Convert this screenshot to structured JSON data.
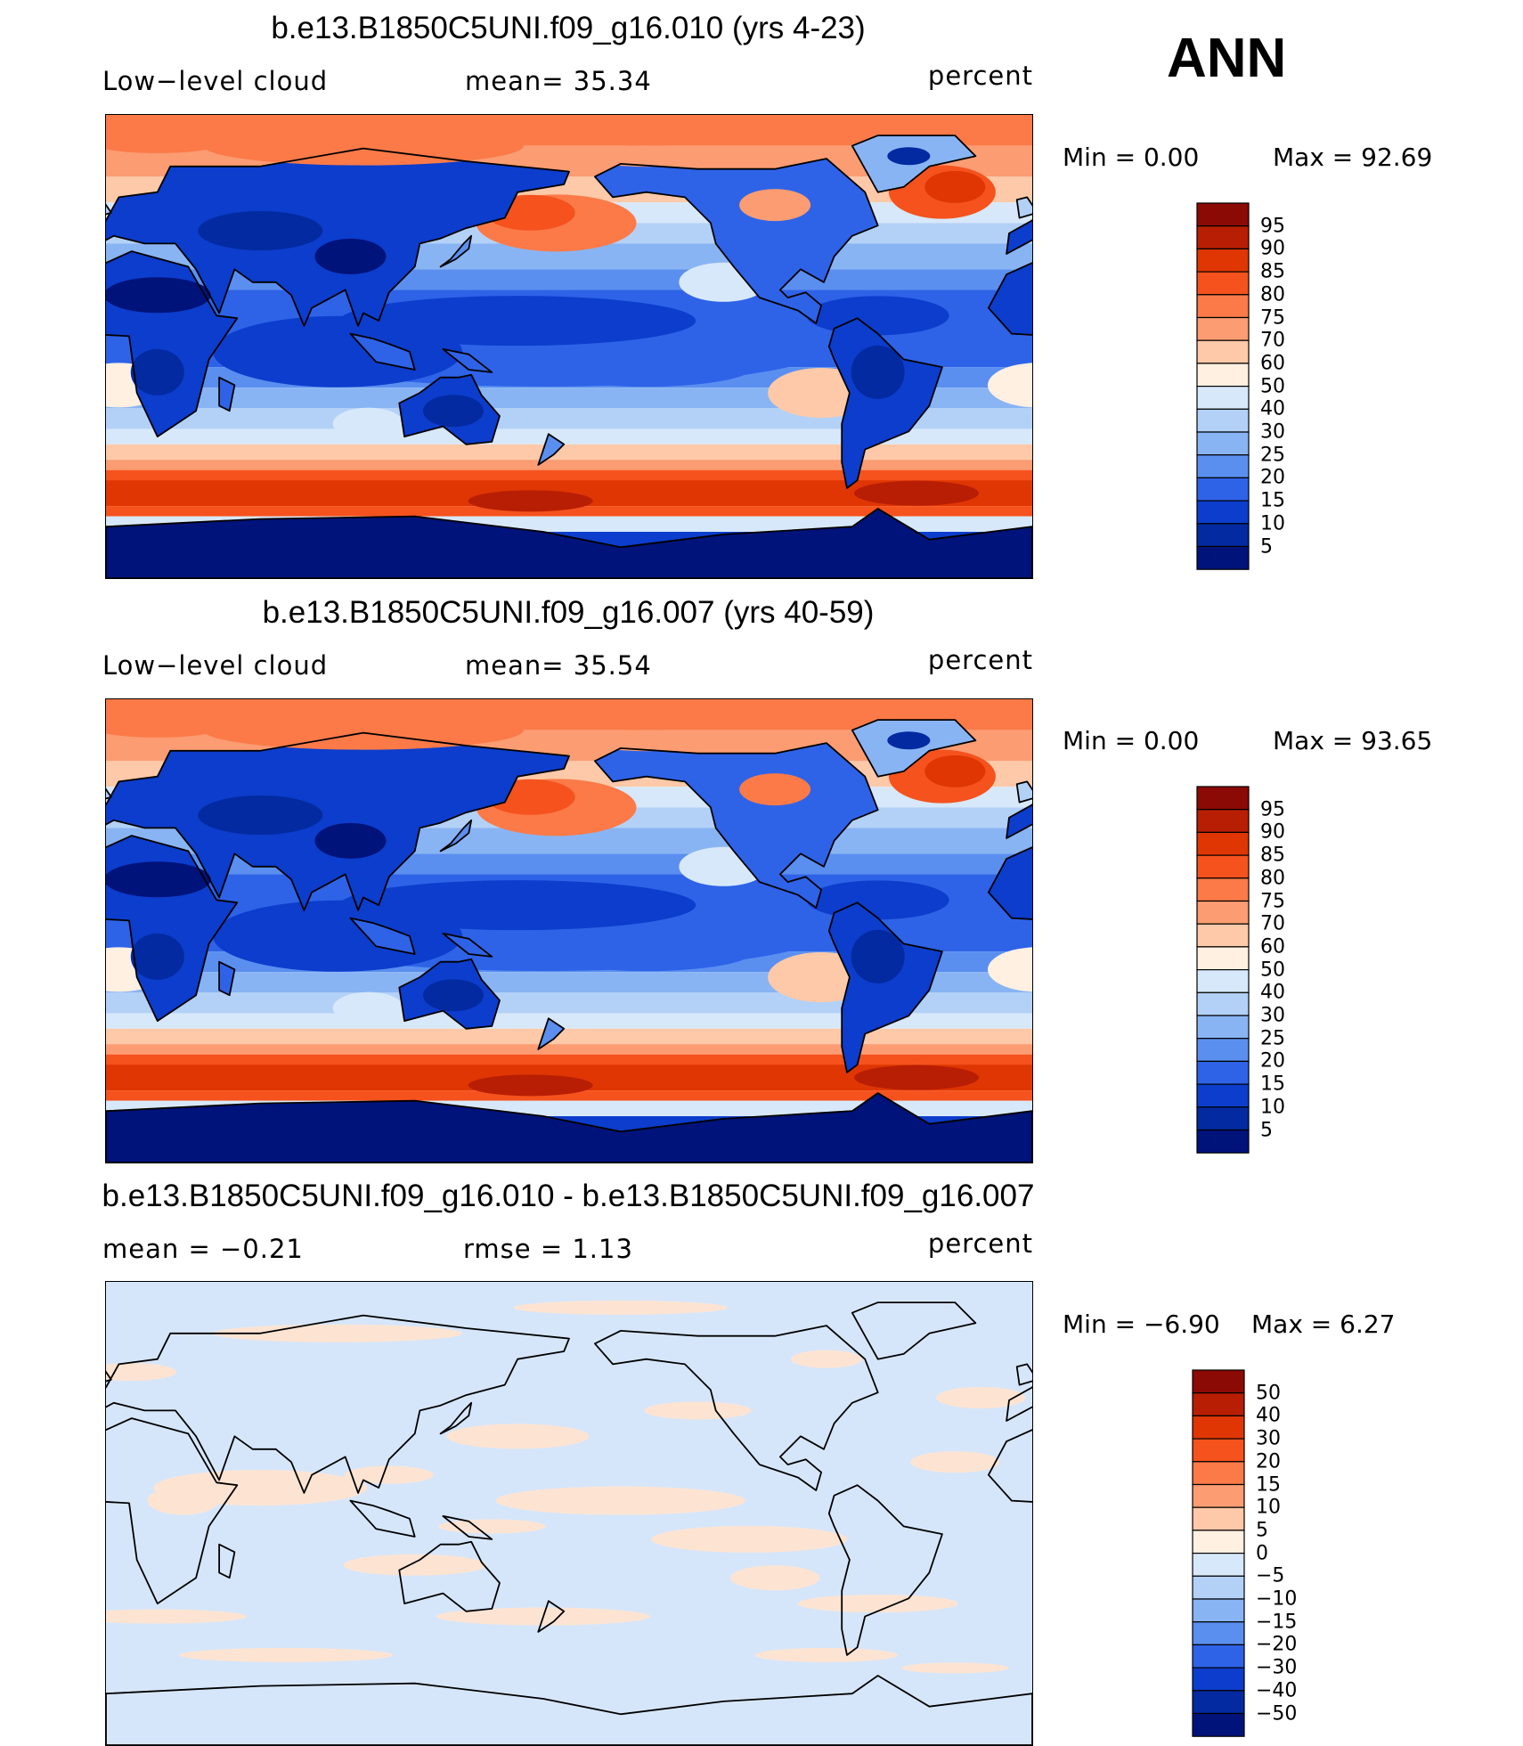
{
  "season": "ANN",
  "chart_data": [
    {
      "type": "heatmap",
      "title": "b.e13.B1850C5UNI.f09_g16.010 (yrs 4-23)",
      "left_label": "Low−level cloud",
      "center_label": "mean=   35.34",
      "units": "percent",
      "min_label": "Min =     0.00",
      "max_label": "Max =    92.69",
      "min": 0.0,
      "max": 92.69,
      "mean": 35.34,
      "colorbar": {
        "ticks": [
          "95",
          "90",
          "85",
          "80",
          "75",
          "70",
          "60",
          "50",
          "40",
          "30",
          "25",
          "20",
          "15",
          "10",
          "5"
        ],
        "colors": [
          "#8c0a05",
          "#b81e04",
          "#df3603",
          "#f5521d",
          "#fb7a48",
          "#fb9c72",
          "#fdc9a8",
          "#fff0e1",
          "#d7e8fa",
          "#b3d1f7",
          "#89b4f3",
          "#5a8ff0",
          "#2e63e8",
          "#0c3dcc",
          "#032aa0",
          "#00137a"
        ]
      }
    },
    {
      "type": "heatmap",
      "title": "b.e13.B1850C5UNI.f09_g16.007 (yrs 40-59)",
      "left_label": "Low−level cloud",
      "center_label": "mean=   35.54",
      "units": "percent",
      "min_label": "Min =     0.00",
      "max_label": "Max =    93.65",
      "min": 0.0,
      "max": 93.65,
      "mean": 35.54,
      "colorbar": {
        "ticks": [
          "95",
          "90",
          "85",
          "80",
          "75",
          "70",
          "60",
          "50",
          "40",
          "30",
          "25",
          "20",
          "15",
          "10",
          "5"
        ],
        "colors": [
          "#8c0a05",
          "#b81e04",
          "#df3603",
          "#f5521d",
          "#fb7a48",
          "#fb9c72",
          "#fdc9a8",
          "#fff0e1",
          "#d7e8fa",
          "#b3d1f7",
          "#89b4f3",
          "#5a8ff0",
          "#2e63e8",
          "#0c3dcc",
          "#032aa0",
          "#00137a"
        ]
      }
    },
    {
      "type": "heatmap",
      "title": "b.e13.B1850C5UNI.f09_g16.010 - b.e13.B1850C5UNI.f09_g16.007",
      "left_label": "mean =   −0.21",
      "center_label": "rmse =     1.13",
      "units": "percent",
      "min_label": "Min =    −6.90",
      "max_label": "Max =      6.27",
      "min": -6.9,
      "max": 6.27,
      "mean": -0.21,
      "rmse": 1.13,
      "colorbar": {
        "ticks": [
          "50",
          "40",
          "30",
          "20",
          "15",
          "10",
          "5",
          "0",
          "−5",
          "−10",
          "−15",
          "−20",
          "−30",
          "−40",
          "−50"
        ],
        "colors": [
          "#8c0a05",
          "#b81e04",
          "#df3603",
          "#f5521d",
          "#fb7a48",
          "#fb9c72",
          "#fdc9a8",
          "#fff0e1",
          "#d7e8fa",
          "#b3d1f7",
          "#89b4f3",
          "#5a8ff0",
          "#2e63e8",
          "#0c3dcc",
          "#032aa0",
          "#00137a"
        ]
      }
    }
  ]
}
